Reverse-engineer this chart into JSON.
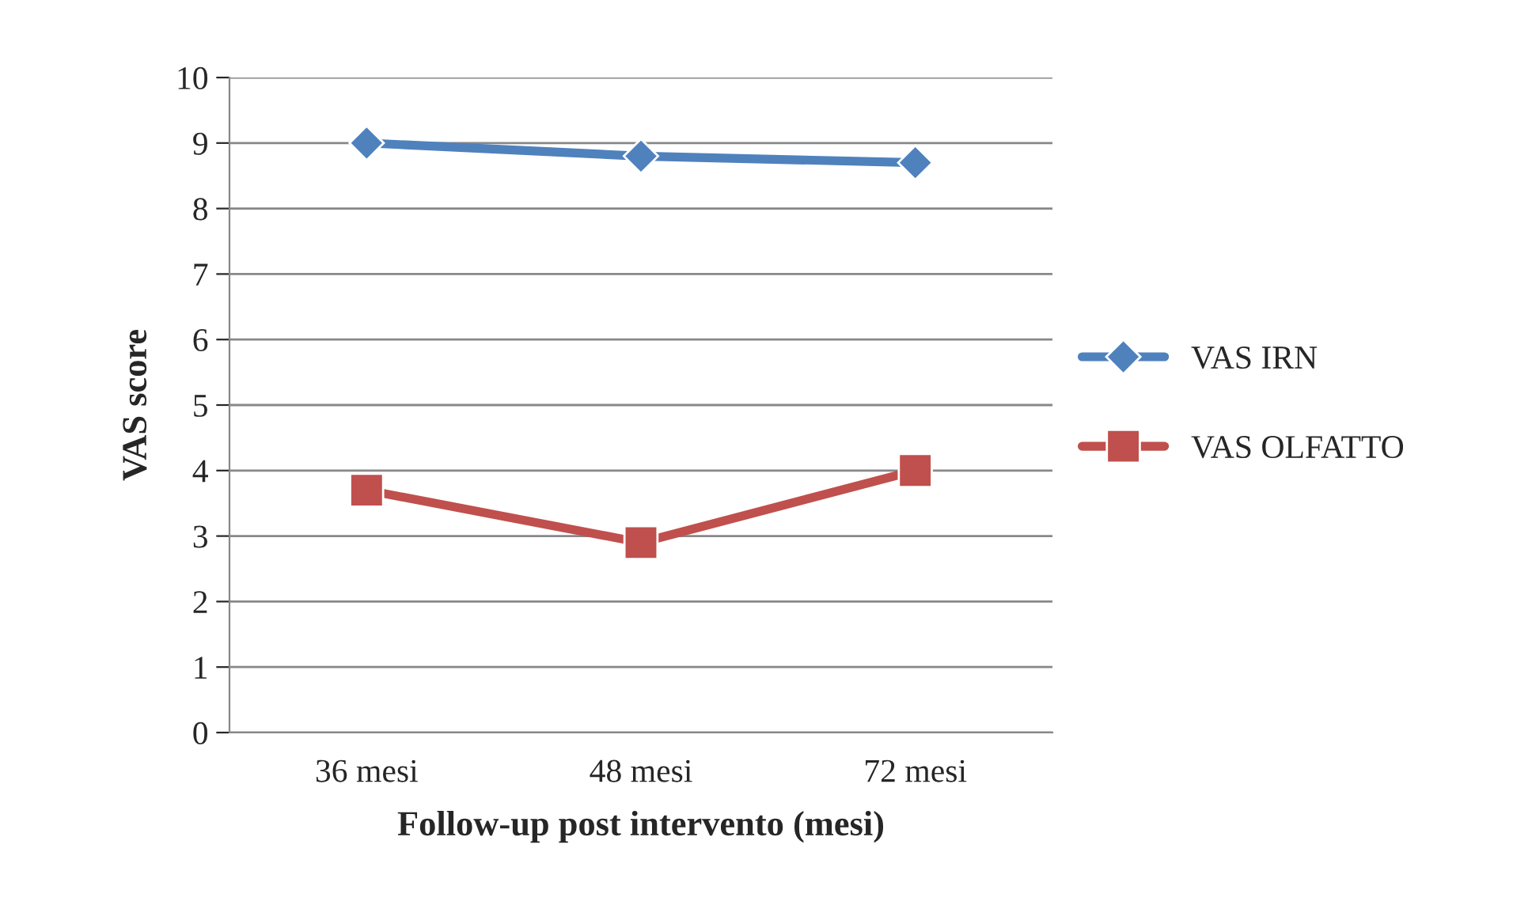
{
  "chart_data": {
    "type": "line",
    "xlabel": "Follow-up post intervento (mesi)",
    "ylabel": "VAS score",
    "categories": [
      "36 mesi",
      "48 mesi",
      "72 mesi"
    ],
    "series": [
      {
        "name": "VAS IRN",
        "color": "#4f81bd",
        "marker": "diamond",
        "values": [
          9.0,
          8.8,
          8.7
        ]
      },
      {
        "name": "VAS OLFATTO",
        "color": "#c0504d",
        "marker": "square",
        "values": [
          3.7,
          2.9,
          4.0
        ]
      }
    ],
    "ylim": [
      0,
      10
    ],
    "yticks": [
      0,
      1,
      2,
      3,
      4,
      5,
      6,
      7,
      8,
      9,
      10
    ],
    "grid": "y",
    "legend": "right",
    "line_style": "solid"
  }
}
